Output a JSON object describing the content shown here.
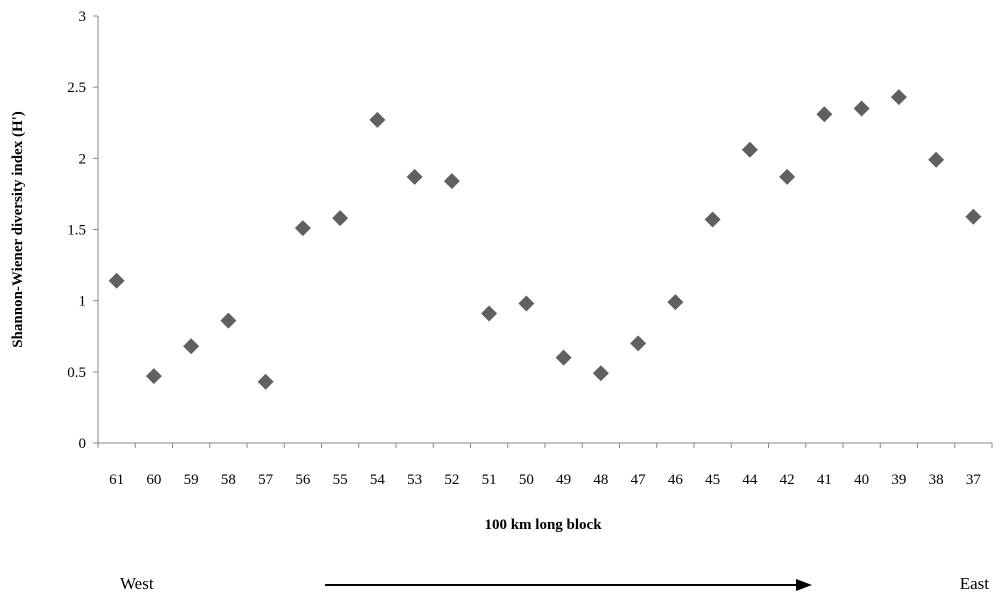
{
  "chart_data": {
    "type": "scatter",
    "title": "",
    "xlabel": "100 km long block",
    "ylabel": "Shannon-Wiener diversity index (H')",
    "categories": [
      "61",
      "60",
      "59",
      "58",
      "57",
      "56",
      "55",
      "54",
      "53",
      "52",
      "51",
      "50",
      "49",
      "48",
      "47",
      "46",
      "45",
      "44",
      "42",
      "41",
      "40",
      "39",
      "38",
      "37"
    ],
    "values": [
      1.14,
      0.47,
      0.68,
      0.86,
      0.43,
      1.51,
      1.58,
      2.27,
      1.87,
      1.84,
      0.91,
      0.98,
      0.6,
      0.49,
      0.7,
      0.99,
      1.57,
      2.06,
      1.87,
      2.31,
      2.35,
      2.43,
      1.99,
      1.59
    ],
    "ylim": [
      0,
      3
    ],
    "yticks": [
      0,
      0.5,
      1,
      1.5,
      2,
      2.5,
      3
    ],
    "ytick_labels": [
      "0",
      "0.5",
      "1",
      "1.5",
      "2",
      "2.5",
      "3"
    ],
    "grid": false,
    "marker": "diamond",
    "marker_color": "#606060",
    "direction": {
      "left_label": "West",
      "right_label": "East"
    }
  }
}
